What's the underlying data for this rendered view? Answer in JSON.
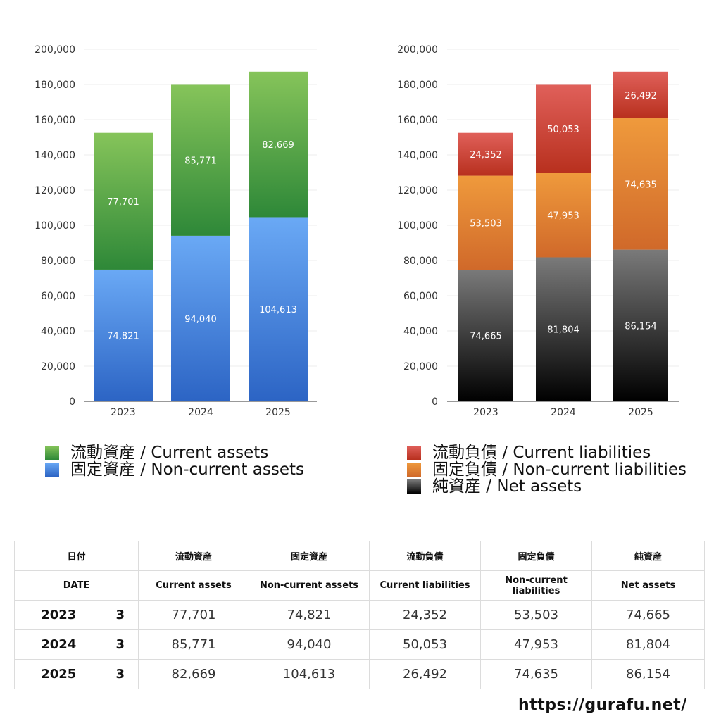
{
  "chart_data": [
    {
      "type": "bar",
      "stacked": true,
      "categories": [
        "2023",
        "2024",
        "2025"
      ],
      "ylim": [
        0,
        200000
      ],
      "yticks": [
        "0",
        "20,000",
        "40,000",
        "60,000",
        "80,000",
        "100,000",
        "120,000",
        "140,000",
        "160,000",
        "180,000",
        "200,000"
      ],
      "series": [
        {
          "name": "固定資産 / Non-current assets",
          "values": [
            74821,
            94040,
            104613
          ],
          "labels": [
            "74,821",
            "94,040",
            "104,613"
          ],
          "color_top": "#6aa9f5",
          "color_bottom": "#2c64c4"
        },
        {
          "name": "流動資産 / Current assets",
          "values": [
            77701,
            85771,
            82669
          ],
          "labels": [
            "77,701",
            "85,771",
            "82,669"
          ],
          "color_top": "#86c45a",
          "color_bottom": "#2e8838"
        }
      ],
      "legend_order": [
        1,
        0
      ],
      "legend_placement": "bottom-left"
    },
    {
      "type": "bar",
      "stacked": true,
      "categories": [
        "2023",
        "2024",
        "2025"
      ],
      "ylim": [
        0,
        200000
      ],
      "yticks": [
        "0",
        "20,000",
        "40,000",
        "60,000",
        "80,000",
        "100,000",
        "120,000",
        "140,000",
        "160,000",
        "180,000",
        "200,000"
      ],
      "series": [
        {
          "name": "純資産 / Net assets",
          "values": [
            74665,
            81804,
            86154
          ],
          "labels": [
            "74,665",
            "81,804",
            "86,154"
          ],
          "color_top": "#7a7a7a",
          "color_bottom": "#000000"
        },
        {
          "name": "固定負債 / Non-current liabilities",
          "values": [
            53503,
            47953,
            74635
          ],
          "labels": [
            "53,503",
            "47,953",
            "74,635"
          ],
          "color_top": "#ef9a3c",
          "color_bottom": "#d0692a"
        },
        {
          "name": "流動負債 / Current liabilities",
          "values": [
            24352,
            50053,
            26492
          ],
          "labels": [
            "24,352",
            "50,053",
            "26,492"
          ],
          "color_top": "#e0605a",
          "color_bottom": "#b8301e"
        }
      ],
      "legend_order": [
        2,
        1,
        0
      ],
      "legend_placement": "bottom-left"
    }
  ],
  "table": {
    "header_ja": [
      "日付",
      "流動資産",
      "固定資産",
      "流動負債",
      "固定負債",
      "純資産"
    ],
    "header_en": [
      "DATE",
      "Current assets",
      "Non-current assets",
      "Current liabilities",
      "Non-current liabilities",
      "Net assets"
    ],
    "rows": [
      {
        "year": "2023",
        "month": "3",
        "values": [
          "77,701",
          "74,821",
          "24,352",
          "53,503",
          "74,665"
        ]
      },
      {
        "year": "2024",
        "month": "3",
        "values": [
          "85,771",
          "94,040",
          "50,053",
          "47,953",
          "81,804"
        ]
      },
      {
        "year": "2025",
        "month": "3",
        "values": [
          "82,669",
          "104,613",
          "26,492",
          "74,635",
          "86,154"
        ]
      }
    ]
  },
  "footer": {
    "site": "https://gurafu.net/"
  }
}
